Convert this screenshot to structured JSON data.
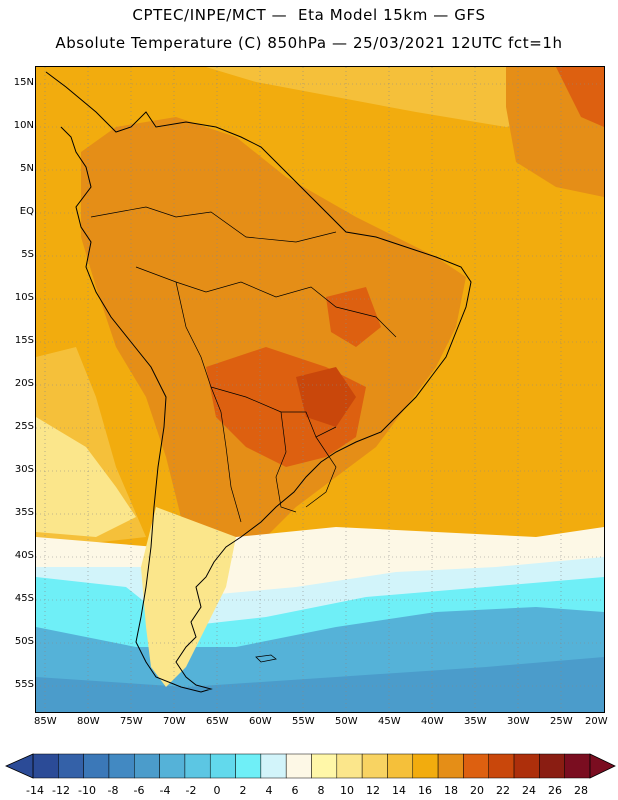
{
  "title_line1": "CPTEC/INPE/MCT —  Eta Model 15km — GFS",
  "title_line2": "Absolute Temperature (C) 850hPa — 25/03/2021 12UTC fct=1h",
  "lat_labels": [
    "15N",
    "10N",
    "5N",
    "EQ",
    "5S",
    "10S",
    "15S",
    "20S",
    "25S",
    "30S",
    "35S",
    "40S",
    "45S",
    "50S",
    "55S"
  ],
  "lon_labels": [
    "85W",
    "80W",
    "75W",
    "70W",
    "65W",
    "60W",
    "55W",
    "50W",
    "45W",
    "40W",
    "35W",
    "30W",
    "25W",
    "20W"
  ],
  "colorbar": {
    "labels": [
      "-14",
      "-12",
      "-10",
      "-8",
      "-6",
      "-4",
      "-2",
      "0",
      "2",
      "4",
      "6",
      "8",
      "10",
      "12",
      "14",
      "16",
      "18",
      "20",
      "22",
      "24",
      "26",
      "28"
    ],
    "colors": [
      "#2b4b97",
      "#3461a8",
      "#3b78b8",
      "#4289c2",
      "#4b9ccb",
      "#55b2d8",
      "#5cc6e3",
      "#62d9ec",
      "#6feff7",
      "#d2f4fa",
      "#fdf8e6",
      "#fff7a8",
      "#fbe68b",
      "#f8d362",
      "#f5c03a",
      "#f2ac0e",
      "#e58e17",
      "#dd6010",
      "#c9470b",
      "#ad2f0b",
      "#8a1d12",
      "#7a0d20"
    ]
  }
}
